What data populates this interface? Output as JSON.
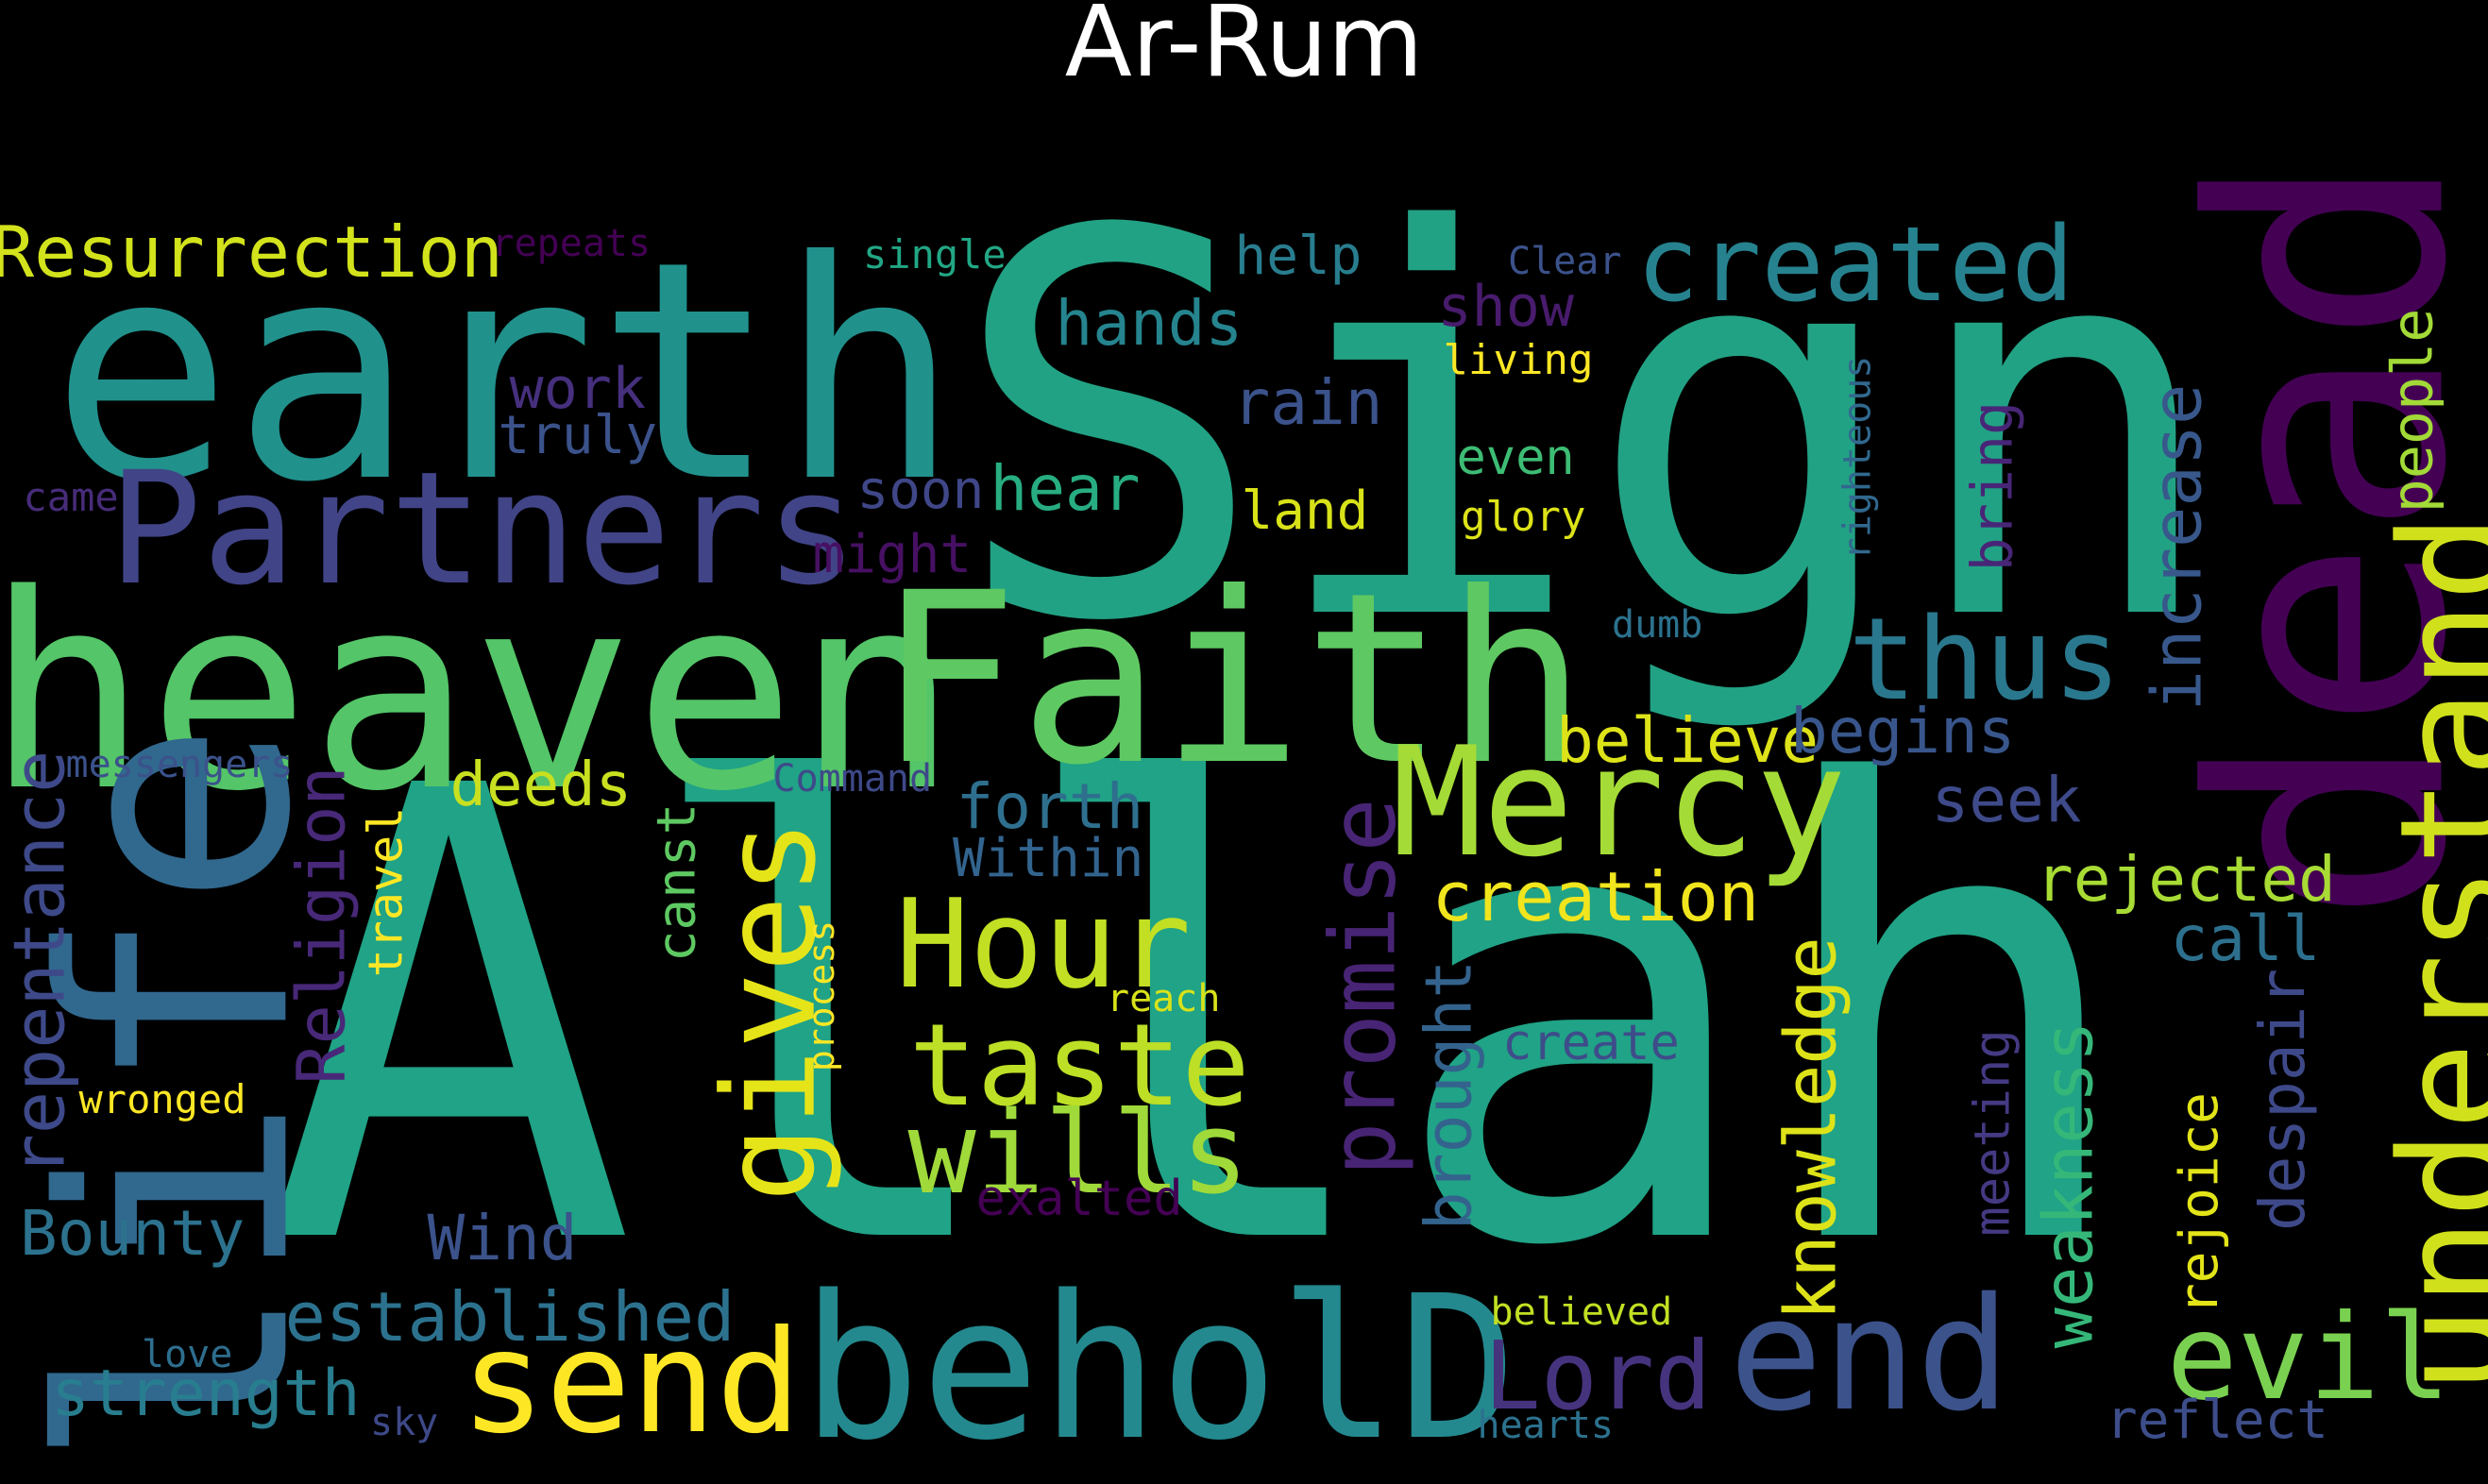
{
  "title": "Ar-Rum",
  "words": [
    {
      "text": "Allah",
      "color": "#20a386"
    },
    {
      "text": "Sign",
      "color": "#22a284"
    },
    {
      "text": "earth",
      "color": "#21918c"
    },
    {
      "text": "heaven",
      "color": "#54c568"
    },
    {
      "text": "Faith",
      "color": "#5ec962"
    },
    {
      "text": "life",
      "color": "#31688e"
    },
    {
      "text": "dead",
      "color": "#440154"
    },
    {
      "text": "beholD",
      "color": "#23898e"
    },
    {
      "text": "understand",
      "color": "#d0e11c"
    },
    {
      "text": "Partners",
      "color": "#414487"
    },
    {
      "text": "Mercy",
      "color": "#a5db36"
    },
    {
      "text": "end",
      "color": "#3b528b"
    },
    {
      "text": "send",
      "color": "#fde725"
    },
    {
      "text": "created",
      "color": "#26828e"
    },
    {
      "text": "thus",
      "color": "#2a788e"
    },
    {
      "text": "Hour",
      "color": "#c2df23"
    },
    {
      "text": "taste",
      "color": "#bddf26"
    },
    {
      "text": "wills",
      "color": "#9fda3a"
    },
    {
      "text": "gives",
      "color": "#e5e419"
    },
    {
      "text": "evil",
      "color": "#7ad151"
    },
    {
      "text": "Resurrection",
      "color": "#d2e21b"
    },
    {
      "text": "promise",
      "color": "#482475"
    },
    {
      "text": "Lord",
      "color": "#46337e"
    },
    {
      "text": "Religion",
      "color": "#482878"
    },
    {
      "text": "increase",
      "color": "#38588c"
    },
    {
      "text": "knowledge",
      "color": "#dde318"
    },
    {
      "text": "weakness",
      "color": "#35b779"
    },
    {
      "text": "repentance",
      "color": "#3e4989"
    },
    {
      "text": "established",
      "color": "#2c728e"
    },
    {
      "text": "strength",
      "color": "#287d8e"
    },
    {
      "text": "creation",
      "color": "#f1e51d"
    },
    {
      "text": "rejected",
      "color": "#a8db34"
    },
    {
      "text": "believe",
      "color": "#dde318"
    },
    {
      "text": "begins",
      "color": "#39568c"
    },
    {
      "text": "brought",
      "color": "#33638d"
    },
    {
      "text": "despair",
      "color": "#3e4989"
    },
    {
      "text": "Bounty",
      "color": "#2c728e"
    },
    {
      "text": "Wind",
      "color": "#3b528b"
    },
    {
      "text": "deeds",
      "color": "#c8e020"
    },
    {
      "text": "forth",
      "color": "#2e6f8e"
    },
    {
      "text": "hands",
      "color": "#25848e"
    },
    {
      "text": "hear",
      "color": "#27ad81"
    },
    {
      "text": "rain",
      "color": "#3b528b"
    },
    {
      "text": "people",
      "color": "#a2da37"
    },
    {
      "text": "bring",
      "color": "#482677"
    },
    {
      "text": "seek",
      "color": "#3e4a89"
    },
    {
      "text": "call",
      "color": "#2d708e"
    },
    {
      "text": "rejoice",
      "color": "#e3e418"
    },
    {
      "text": "meeting",
      "color": "#443a83"
    },
    {
      "text": "reflect",
      "color": "#3d4d8a"
    },
    {
      "text": "help",
      "color": "#287d8e"
    },
    {
      "text": "show",
      "color": "#481b6d"
    },
    {
      "text": "work",
      "color": "#46307e"
    },
    {
      "text": "truly",
      "color": "#3b528b"
    },
    {
      "text": "soon",
      "color": "#3f4788"
    },
    {
      "text": "might",
      "color": "#471063"
    },
    {
      "text": "land",
      "color": "#d8e219"
    },
    {
      "text": "even",
      "color": "#3dbc74"
    },
    {
      "text": "canst",
      "color": "#5ec962"
    },
    {
      "text": "travel",
      "color": "#fde725"
    },
    {
      "text": "Within",
      "color": "#32648e"
    },
    {
      "text": "create",
      "color": "#3e4c8a"
    },
    {
      "text": "exalted",
      "color": "#440154"
    },
    {
      "text": "living",
      "color": "#fde725"
    },
    {
      "text": "glory",
      "color": "#dde318"
    },
    {
      "text": "righteous",
      "color": "#31688e"
    },
    {
      "text": "single",
      "color": "#22a785"
    },
    {
      "text": "Clear",
      "color": "#3b528b"
    },
    {
      "text": "repeats",
      "color": "#440154"
    },
    {
      "text": "came",
      "color": "#472c7a"
    },
    {
      "text": "messengers",
      "color": "#3b528b"
    },
    {
      "text": "Command",
      "color": "#3e4989"
    },
    {
      "text": "dumb",
      "color": "#2c728e"
    },
    {
      "text": "process",
      "color": "#fde725"
    },
    {
      "text": "reach",
      "color": "#d8e219"
    },
    {
      "text": "wronged",
      "color": "#fde725"
    },
    {
      "text": "love",
      "color": "#2e6e8e"
    },
    {
      "text": "sky",
      "color": "#3e4989"
    },
    {
      "text": "believed",
      "color": "#c2df23"
    },
    {
      "text": "hearts",
      "color": "#2c728e"
    }
  ]
}
